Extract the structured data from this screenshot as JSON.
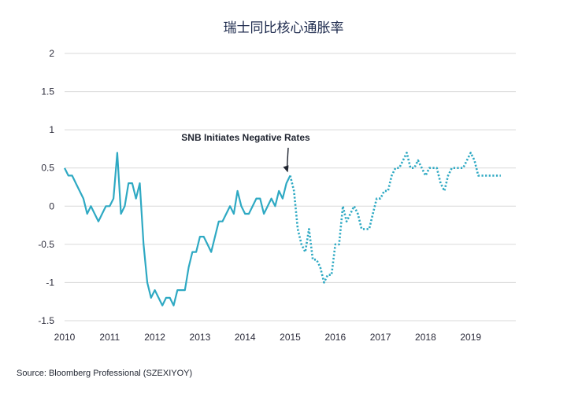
{
  "chart_data": {
    "type": "line",
    "title": "瑞士同比核心通胀率",
    "xlabel": "",
    "ylabel": "",
    "x_ticks": [
      "2010",
      "2011",
      "2012",
      "2013",
      "2014",
      "2015",
      "2016",
      "2017",
      "2018",
      "2019"
    ],
    "xlim": [
      2010,
      2020
    ],
    "y_ticks": [
      "2",
      "1.5",
      "1",
      "0.5",
      "0",
      "-0.5",
      "-1",
      "-1.5"
    ],
    "ylim": [
      -1.5,
      2
    ],
    "grid": true,
    "annotation": "SNB Initiates Negative Rates",
    "source": "Source: Bloomberg Professional (SZEXIYOY)",
    "colors": {
      "line": "#2ea9c3",
      "grid": "#d9d9d9",
      "title": "#1d2a4d",
      "arrow": "#1f2430"
    },
    "series": [
      {
        "style": "solid",
        "x": [
          2010.0,
          2010.083,
          2010.167,
          2010.25,
          2010.333,
          2010.417,
          2010.5,
          2010.583,
          2010.667,
          2010.75,
          2010.833,
          2010.917,
          2011.0,
          2011.083,
          2011.167,
          2011.25,
          2011.333,
          2011.417,
          2011.5,
          2011.583,
          2011.667,
          2011.75,
          2011.833,
          2011.917,
          2012.0,
          2012.083,
          2012.167,
          2012.25,
          2012.333,
          2012.417,
          2012.5,
          2012.583,
          2012.667,
          2012.75,
          2012.833,
          2012.917,
          2013.0,
          2013.083,
          2013.167,
          2013.25,
          2013.333,
          2013.417,
          2013.5,
          2013.583,
          2013.667,
          2013.75,
          2013.833,
          2013.917,
          2014.0,
          2014.083,
          2014.167,
          2014.25,
          2014.333,
          2014.417,
          2014.5,
          2014.583,
          2014.667,
          2014.75,
          2014.833,
          2014.917,
          2015.0
        ],
        "y": [
          0.5,
          0.4,
          0.4,
          0.3,
          0.2,
          0.1,
          -0.1,
          0.0,
          -0.1,
          -0.2,
          -0.1,
          0.0,
          0.0,
          0.1,
          0.7,
          -0.1,
          0.0,
          0.3,
          0.3,
          0.1,
          0.3,
          -0.5,
          -1.0,
          -1.2,
          -1.1,
          -1.2,
          -1.3,
          -1.2,
          -1.2,
          -1.3,
          -1.1,
          -1.1,
          -1.1,
          -0.8,
          -0.6,
          -0.6,
          -0.4,
          -0.4,
          -0.5,
          -0.6,
          -0.4,
          -0.2,
          -0.2,
          -0.1,
          0.0,
          -0.1,
          0.2,
          0.0,
          -0.1,
          -0.1,
          0.0,
          0.1,
          0.1,
          -0.1,
          0.0,
          0.1,
          0.0,
          0.2,
          0.1,
          0.3,
          0.4
        ]
      },
      {
        "style": "dotted",
        "x": [
          2015.0,
          2015.083,
          2015.167,
          2015.25,
          2015.333,
          2015.417,
          2015.5,
          2015.583,
          2015.667,
          2015.75,
          2015.833,
          2015.917,
          2016.0,
          2016.083,
          2016.167,
          2016.25,
          2016.333,
          2016.417,
          2016.5,
          2016.583,
          2016.667,
          2016.75,
          2016.833,
          2016.917,
          2017.0,
          2017.083,
          2017.167,
          2017.25,
          2017.333,
          2017.417,
          2017.5,
          2017.583,
          2017.667,
          2017.75,
          2017.833,
          2017.917,
          2018.0,
          2018.083,
          2018.167,
          2018.25,
          2018.333,
          2018.417,
          2018.5,
          2018.583,
          2018.667,
          2018.75,
          2018.833,
          2018.917,
          2019.0,
          2019.083,
          2019.167,
          2019.25,
          2019.333,
          2019.417,
          2019.5,
          2019.583,
          2019.667
        ],
        "y": [
          0.4,
          0.2,
          -0.3,
          -0.5,
          -0.6,
          -0.3,
          -0.7,
          -0.7,
          -0.8,
          -1.0,
          -0.9,
          -0.9,
          -0.5,
          -0.5,
          0.0,
          -0.2,
          -0.1,
          0.0,
          -0.1,
          -0.3,
          -0.3,
          -0.3,
          -0.1,
          0.1,
          0.1,
          0.2,
          0.2,
          0.4,
          0.5,
          0.5,
          0.6,
          0.7,
          0.5,
          0.5,
          0.6,
          0.5,
          0.4,
          0.5,
          0.5,
          0.5,
          0.3,
          0.2,
          0.4,
          0.5,
          0.5,
          0.5,
          0.5,
          0.6,
          0.7,
          0.6,
          0.4,
          0.4,
          0.4,
          0.4,
          0.4,
          0.4,
          0.4
        ]
      }
    ]
  }
}
